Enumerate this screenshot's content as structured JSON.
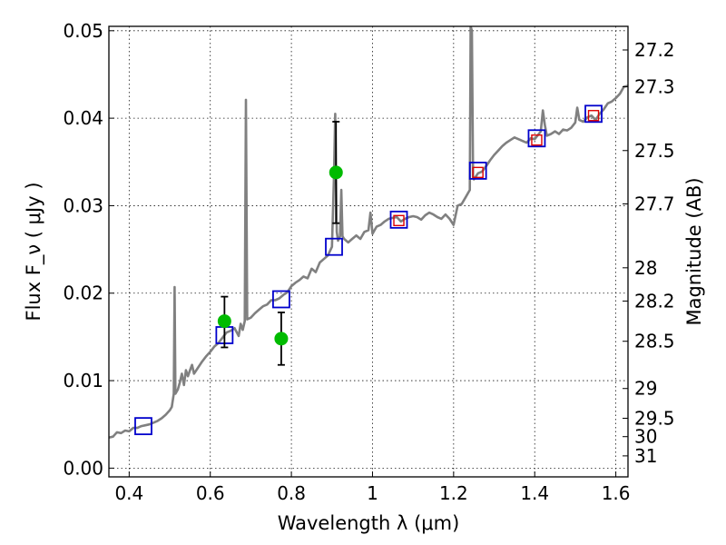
{
  "chart_data": {
    "type": "scatter",
    "title": "",
    "xlabel": "Wavelength  λ (μm)",
    "ylabel": "Flux  F_ν  ( μJy )",
    "ylabel_right": "Magnitude (AB)",
    "xlim": [
      0.35,
      1.63
    ],
    "ylim": [
      -0.001,
      0.0505
    ],
    "grid": true,
    "x_ticks": [
      0.4,
      0.6,
      0.8,
      1.0,
      1.2,
      1.4,
      1.6
    ],
    "x_tick_labels": [
      "0.4",
      "0.6",
      "0.8",
      "1",
      "1.2",
      "1.4",
      "1.6"
    ],
    "y_ticks": [
      0.0,
      0.01,
      0.02,
      0.03,
      0.04,
      0.05
    ],
    "y_tick_labels": [
      "0.00",
      "0.01",
      "0.02",
      "0.03",
      "0.04",
      "0.05"
    ],
    "right_ticks": [
      {
        "label": "27.2",
        "flux": 0.0478
      },
      {
        "label": "27.3",
        "flux": 0.0436
      },
      {
        "label": "27.5",
        "flux": 0.0363
      },
      {
        "label": "27.7",
        "flux": 0.0302
      },
      {
        "label": "28",
        "flux": 0.0229
      },
      {
        "label": "28.2",
        "flux": 0.0191
      },
      {
        "label": "28.5",
        "flux": 0.0145
      },
      {
        "label": "29",
        "flux": 0.0091
      },
      {
        "label": "29.5",
        "flux": 0.0057
      },
      {
        "label": "30",
        "flux": 0.0036
      },
      {
        "label": "31",
        "flux": 0.0014
      }
    ],
    "colors": {
      "model": "#808080",
      "blue_squares": "#0000cc",
      "red_squares": "#dd0000",
      "green_points": "#00bb00",
      "error_bars": "#000000"
    },
    "series": [
      {
        "style": "line",
        "points": [
          [
            0.35,
            0.0035
          ],
          [
            0.36,
            0.0036
          ],
          [
            0.37,
            0.0041
          ],
          [
            0.38,
            0.004
          ],
          [
            0.39,
            0.0043
          ],
          [
            0.4,
            0.0042
          ],
          [
            0.41,
            0.0046
          ],
          [
            0.42,
            0.0046
          ],
          [
            0.43,
            0.0048
          ],
          [
            0.44,
            0.0049
          ],
          [
            0.45,
            0.005
          ],
          [
            0.46,
            0.0052
          ],
          [
            0.47,
            0.0054
          ],
          [
            0.48,
            0.0057
          ],
          [
            0.49,
            0.0061
          ],
          [
            0.5,
            0.0066
          ],
          [
            0.505,
            0.007
          ],
          [
            0.51,
            0.0085
          ],
          [
            0.512,
            0.0207
          ],
          [
            0.514,
            0.0085
          ],
          [
            0.52,
            0.009
          ],
          [
            0.525,
            0.0098
          ],
          [
            0.53,
            0.0108
          ],
          [
            0.535,
            0.0095
          ],
          [
            0.54,
            0.0112
          ],
          [
            0.545,
            0.0105
          ],
          [
            0.55,
            0.0112
          ],
          [
            0.555,
            0.0118
          ],
          [
            0.56,
            0.0108
          ],
          [
            0.57,
            0.0115
          ],
          [
            0.58,
            0.0122
          ],
          [
            0.59,
            0.0128
          ],
          [
            0.6,
            0.0133
          ],
          [
            0.61,
            0.0139
          ],
          [
            0.62,
            0.0143
          ],
          [
            0.63,
            0.0149
          ],
          [
            0.64,
            0.0155
          ],
          [
            0.65,
            0.0157
          ],
          [
            0.66,
            0.016
          ],
          [
            0.67,
            0.0151
          ],
          [
            0.675,
            0.0165
          ],
          [
            0.68,
            0.0158
          ],
          [
            0.685,
            0.0168
          ],
          [
            0.688,
            0.0421
          ],
          [
            0.691,
            0.017
          ],
          [
            0.7,
            0.0172
          ],
          [
            0.71,
            0.0177
          ],
          [
            0.72,
            0.0181
          ],
          [
            0.73,
            0.0185
          ],
          [
            0.74,
            0.0187
          ],
          [
            0.75,
            0.0192
          ],
          [
            0.76,
            0.0192
          ],
          [
            0.77,
            0.0194
          ],
          [
            0.78,
            0.0198
          ],
          [
            0.79,
            0.0201
          ],
          [
            0.8,
            0.0208
          ],
          [
            0.81,
            0.0212
          ],
          [
            0.82,
            0.0215
          ],
          [
            0.83,
            0.0219
          ],
          [
            0.84,
            0.0217
          ],
          [
            0.85,
            0.0228
          ],
          [
            0.86,
            0.0224
          ],
          [
            0.87,
            0.0235
          ],
          [
            0.88,
            0.0239
          ],
          [
            0.89,
            0.0243
          ],
          [
            0.9,
            0.0253
          ],
          [
            0.905,
            0.0333
          ],
          [
            0.908,
            0.0405
          ],
          [
            0.912,
            0.027
          ],
          [
            0.915,
            0.026
          ],
          [
            0.92,
            0.0265
          ],
          [
            0.923,
            0.0318
          ],
          [
            0.926,
            0.0265
          ],
          [
            0.93,
            0.0262
          ],
          [
            0.94,
            0.0258
          ],
          [
            0.95,
            0.0262
          ],
          [
            0.96,
            0.0266
          ],
          [
            0.97,
            0.0262
          ],
          [
            0.98,
            0.027
          ],
          [
            0.99,
            0.0272
          ],
          [
            0.995,
            0.0292
          ],
          [
            1.0,
            0.0268
          ],
          [
            1.01,
            0.0276
          ],
          [
            1.02,
            0.0278
          ],
          [
            1.03,
            0.0282
          ],
          [
            1.04,
            0.0285
          ],
          [
            1.05,
            0.0286
          ],
          [
            1.06,
            0.0287
          ],
          [
            1.07,
            0.0282
          ],
          [
            1.08,
            0.0285
          ],
          [
            1.09,
            0.0287
          ],
          [
            1.1,
            0.0288
          ],
          [
            1.11,
            0.0287
          ],
          [
            1.12,
            0.0284
          ],
          [
            1.13,
            0.0289
          ],
          [
            1.14,
            0.0292
          ],
          [
            1.15,
            0.029
          ],
          [
            1.16,
            0.0287
          ],
          [
            1.17,
            0.0285
          ],
          [
            1.18,
            0.029
          ],
          [
            1.19,
            0.0285
          ],
          [
            1.2,
            0.0278
          ],
          [
            1.21,
            0.03
          ],
          [
            1.22,
            0.0302
          ],
          [
            1.23,
            0.031
          ],
          [
            1.24,
            0.0318
          ],
          [
            1.242,
            0.0505
          ],
          [
            1.245,
            0.05
          ],
          [
            1.248,
            0.0332
          ],
          [
            1.25,
            0.033
          ],
          [
            1.26,
            0.0337
          ],
          [
            1.27,
            0.0339
          ],
          [
            1.28,
            0.0345
          ],
          [
            1.29,
            0.0352
          ],
          [
            1.3,
            0.0358
          ],
          [
            1.31,
            0.0363
          ],
          [
            1.32,
            0.0368
          ],
          [
            1.33,
            0.0372
          ],
          [
            1.34,
            0.0375
          ],
          [
            1.35,
            0.0378
          ],
          [
            1.36,
            0.0376
          ],
          [
            1.37,
            0.0374
          ],
          [
            1.38,
            0.0372
          ],
          [
            1.39,
            0.0377
          ],
          [
            1.4,
            0.0376
          ],
          [
            1.41,
            0.0382
          ],
          [
            1.415,
            0.0385
          ],
          [
            1.42,
            0.0409
          ],
          [
            1.425,
            0.0392
          ],
          [
            1.43,
            0.038
          ],
          [
            1.44,
            0.0382
          ],
          [
            1.45,
            0.0385
          ],
          [
            1.46,
            0.0382
          ],
          [
            1.47,
            0.0387
          ],
          [
            1.48,
            0.0386
          ],
          [
            1.49,
            0.0389
          ],
          [
            1.5,
            0.0395
          ],
          [
            1.505,
            0.0412
          ],
          [
            1.51,
            0.0398
          ],
          [
            1.52,
            0.0396
          ],
          [
            1.53,
            0.0401
          ],
          [
            1.54,
            0.0403
          ],
          [
            1.55,
            0.0398
          ],
          [
            1.56,
            0.0405
          ],
          [
            1.57,
            0.041
          ],
          [
            1.58,
            0.0417
          ],
          [
            1.59,
            0.0419
          ],
          [
            1.6,
            0.0423
          ],
          [
            1.61,
            0.0428
          ],
          [
            1.62,
            0.0436
          ],
          [
            1.63,
            0.0437
          ]
        ]
      },
      {
        "style": "blue-square",
        "points": [
          [
            0.435,
            0.0048
          ],
          [
            0.635,
            0.0152
          ],
          [
            0.775,
            0.0193
          ],
          [
            0.905,
            0.0253
          ],
          [
            1.065,
            0.0284
          ],
          [
            1.26,
            0.034
          ],
          [
            1.405,
            0.0377
          ],
          [
            1.545,
            0.0405
          ]
        ]
      },
      {
        "style": "red-square",
        "points": [
          [
            1.065,
            0.0283
          ],
          [
            1.26,
            0.0338
          ],
          [
            1.405,
            0.0375
          ],
          [
            1.545,
            0.0403
          ]
        ]
      },
      {
        "style": "green-point",
        "points": [
          [
            0.635,
            0.0168
          ],
          [
            0.775,
            0.0148
          ],
          [
            0.91,
            0.0338
          ]
        ],
        "errors": [
          [
            0.0138,
            0.0196
          ],
          [
            0.0118,
            0.0178
          ],
          [
            0.028,
            0.0396
          ]
        ]
      }
    ]
  }
}
